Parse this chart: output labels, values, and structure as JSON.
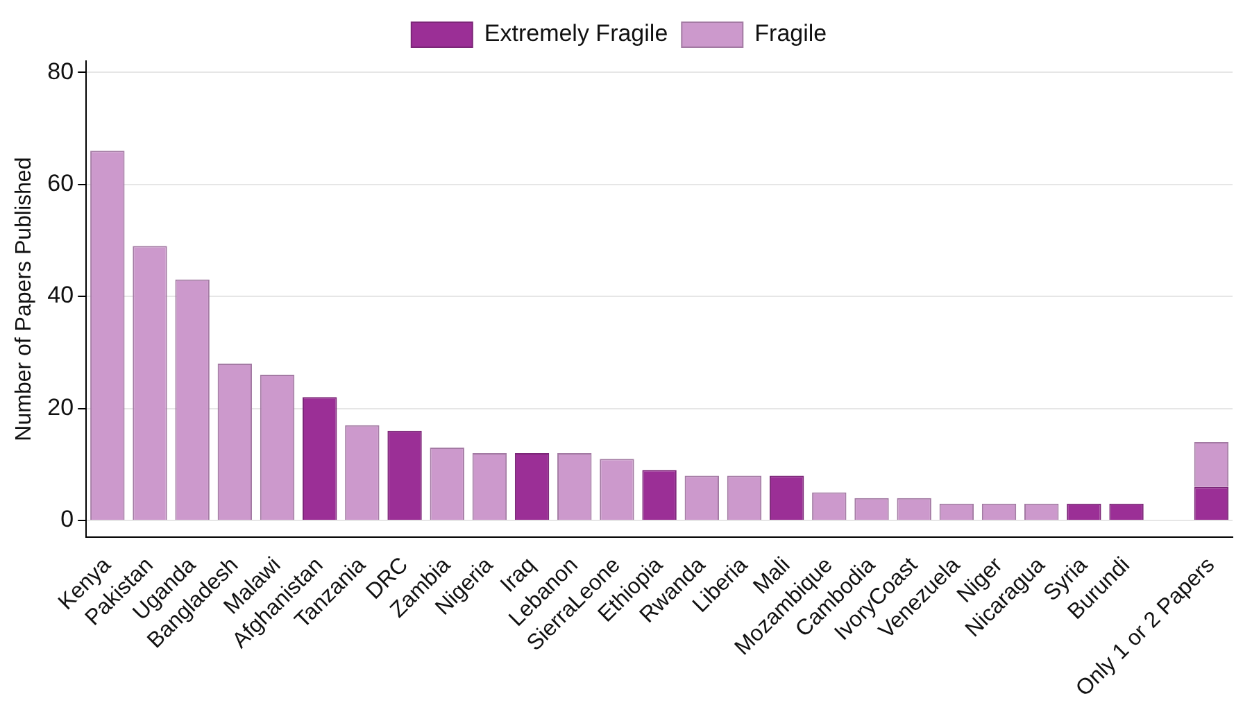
{
  "chart_data": {
    "type": "bar",
    "stacked": true,
    "ylabel": "Number of Papers Published",
    "categories": [
      "Kenya",
      "Pakistan",
      "Uganda",
      "Bangladesh",
      "Malawi",
      "Afghanistan",
      "Tanzania",
      "DRC",
      "Zambia",
      "Nigeria",
      "Iraq",
      "Lebanon",
      "SierraLeone",
      "Ethiopia",
      "Rwanda",
      "Liberia",
      "Mali",
      "Mozambique",
      "Cambodia",
      "IvoryCoast",
      "Venezuela",
      "Niger",
      "Nicaragua",
      "Syria",
      "Burundi",
      null,
      "Only 1 or 2 Papers"
    ],
    "series": [
      {
        "name": "Extremely Fragile",
        "color": "#9b2f96",
        "values": [
          null,
          null,
          null,
          null,
          null,
          22,
          null,
          16,
          null,
          null,
          12,
          null,
          null,
          9,
          null,
          null,
          8,
          null,
          null,
          null,
          null,
          null,
          null,
          3,
          3,
          null,
          6
        ]
      },
      {
        "name": "Fragile",
        "color": "#cc99cc",
        "values": [
          66,
          49,
          43,
          28,
          26,
          null,
          17,
          null,
          13,
          12,
          null,
          12,
          11,
          null,
          8,
          8,
          null,
          5,
          4,
          4,
          3,
          3,
          3,
          null,
          null,
          null,
          8
        ]
      }
    ],
    "ylim": [
      -3,
      82
    ],
    "yticks": [
      0,
      20,
      40,
      60,
      80
    ],
    "grid": "y",
    "legend": "top"
  }
}
